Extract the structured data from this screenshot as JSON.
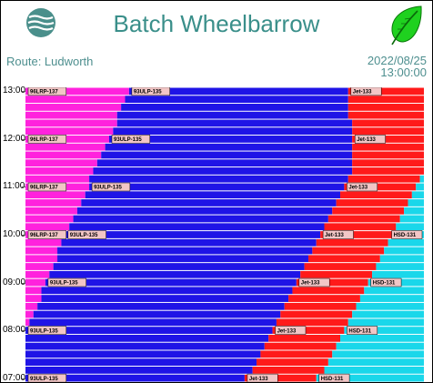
{
  "header": {
    "title": "Batch Wheelbarrow",
    "route": "Route: Ludworth",
    "date": "2022/08/25",
    "time": "13:00:00"
  },
  "colors": {
    "title": "#3a8f8a",
    "magenta": "#ff22dd",
    "blue": "#1f14e6",
    "red": "#ff1a1a",
    "cyan": "#1ad7ea",
    "label_bg": "#f2c6c6"
  },
  "icons": {
    "logo": "waves-globe-icon",
    "leaf": "green-leaf-icon"
  },
  "chart_data": {
    "type": "area",
    "stacking": "percent",
    "orientation": "horizontal-bands",
    "y_axis": {
      "ticks": [
        "07:00",
        "08:00",
        "09:00",
        "10:00",
        "11:00",
        "12:00",
        "13:00"
      ],
      "range": [
        "07:00",
        "13:00"
      ]
    },
    "series": [
      {
        "name": "96LRP-137",
        "color": "#ff22dd"
      },
      {
        "name": "93ULP-135",
        "color": "#1f14e6"
      },
      {
        "name": "Jet-133",
        "color": "#ff1a1a"
      },
      {
        "name": "HSD-131",
        "color": "#1ad7ea"
      }
    ],
    "rows": [
      {
        "time": "07:00",
        "values": [
          0,
          55,
          18,
          27
        ]
      },
      {
        "time": "07:10",
        "values": [
          0,
          57,
          18,
          25
        ]
      },
      {
        "time": "07:20",
        "values": [
          0,
          58,
          18,
          24
        ]
      },
      {
        "time": "07:30",
        "values": [
          0,
          59,
          18,
          23
        ]
      },
      {
        "time": "07:40",
        "values": [
          0,
          60,
          18,
          22
        ]
      },
      {
        "time": "07:50",
        "values": [
          0,
          61,
          18,
          21
        ]
      },
      {
        "time": "08:00",
        "values": [
          0,
          62,
          18,
          20
        ]
      },
      {
        "time": "08:10",
        "values": [
          1,
          62,
          18,
          19
        ]
      },
      {
        "time": "08:20",
        "values": [
          2,
          62,
          18,
          18
        ]
      },
      {
        "time": "08:30",
        "values": [
          3,
          62,
          18,
          17
        ]
      },
      {
        "time": "08:40",
        "values": [
          4,
          62,
          18,
          16
        ]
      },
      {
        "time": "08:50",
        "values": [
          4,
          63,
          18,
          15
        ]
      },
      {
        "time": "09:00",
        "values": [
          5,
          63,
          18,
          14
        ]
      },
      {
        "time": "09:10",
        "values": [
          6,
          63,
          18,
          13
        ]
      },
      {
        "time": "09:20",
        "values": [
          7,
          63,
          18,
          12
        ]
      },
      {
        "time": "09:30",
        "values": [
          8,
          63,
          18,
          11
        ]
      },
      {
        "time": "09:40",
        "values": [
          8,
          64,
          18,
          10
        ]
      },
      {
        "time": "09:50",
        "values": [
          9,
          64,
          18,
          9
        ]
      },
      {
        "time": "10:00",
        "values": [
          10,
          64,
          18,
          8
        ]
      },
      {
        "time": "10:10",
        "values": [
          11,
          64,
          18,
          7
        ]
      },
      {
        "time": "10:20",
        "values": [
          12,
          64,
          18,
          6
        ]
      },
      {
        "time": "10:30",
        "values": [
          13,
          64,
          18,
          5
        ]
      },
      {
        "time": "10:40",
        "values": [
          14,
          64,
          18,
          4
        ]
      },
      {
        "time": "10:50",
        "values": [
          15,
          64,
          18,
          3
        ]
      },
      {
        "time": "11:00",
        "values": [
          16,
          64,
          18,
          2
        ]
      },
      {
        "time": "11:10",
        "values": [
          16,
          65,
          18,
          1
        ]
      },
      {
        "time": "11:20",
        "values": [
          17,
          65,
          18,
          0
        ]
      },
      {
        "time": "11:30",
        "values": [
          18,
          64,
          18,
          0
        ]
      },
      {
        "time": "11:40",
        "values": [
          19,
          63,
          18,
          0
        ]
      },
      {
        "time": "11:50",
        "values": [
          20,
          62,
          18,
          0
        ]
      },
      {
        "time": "12:00",
        "values": [
          21,
          61,
          18,
          0
        ]
      },
      {
        "time": "12:10",
        "values": [
          22,
          60,
          18,
          0
        ]
      },
      {
        "time": "12:20",
        "values": [
          23,
          59,
          18,
          0
        ]
      },
      {
        "time": "12:30",
        "values": [
          23,
          58,
          19,
          0
        ]
      },
      {
        "time": "12:40",
        "values": [
          24,
          57,
          19,
          0
        ]
      },
      {
        "time": "12:50",
        "values": [
          25,
          56,
          19,
          0
        ]
      },
      {
        "time": "13:00",
        "values": [
          26,
          55,
          19,
          0
        ]
      }
    ],
    "labels": [
      {
        "time": "13:00",
        "texts": [
          "96LRP-137",
          "93ULP-135",
          "Jet-133"
        ]
      },
      {
        "time": "12:00",
        "texts": [
          "96LRP-137",
          "93ULP-135",
          "Jet-133"
        ]
      },
      {
        "time": "11:00",
        "texts": [
          "96LRP-137",
          "93ULP-135",
          "Jet-133"
        ]
      },
      {
        "time": "10:00",
        "texts": [
          "96LRP-137",
          "93ULP-135",
          "Jet-133",
          "HSD-131"
        ]
      },
      {
        "time": "09:00",
        "texts": [
          "93ULP-135",
          "Jet-133",
          "HSD-131"
        ]
      },
      {
        "time": "08:00",
        "texts": [
          "93ULP-135",
          "Jet-133",
          "HSD-131"
        ]
      },
      {
        "time": "07:00",
        "texts": [
          "93ULP-135",
          "Jet-133",
          "HSD-131"
        ]
      }
    ]
  }
}
